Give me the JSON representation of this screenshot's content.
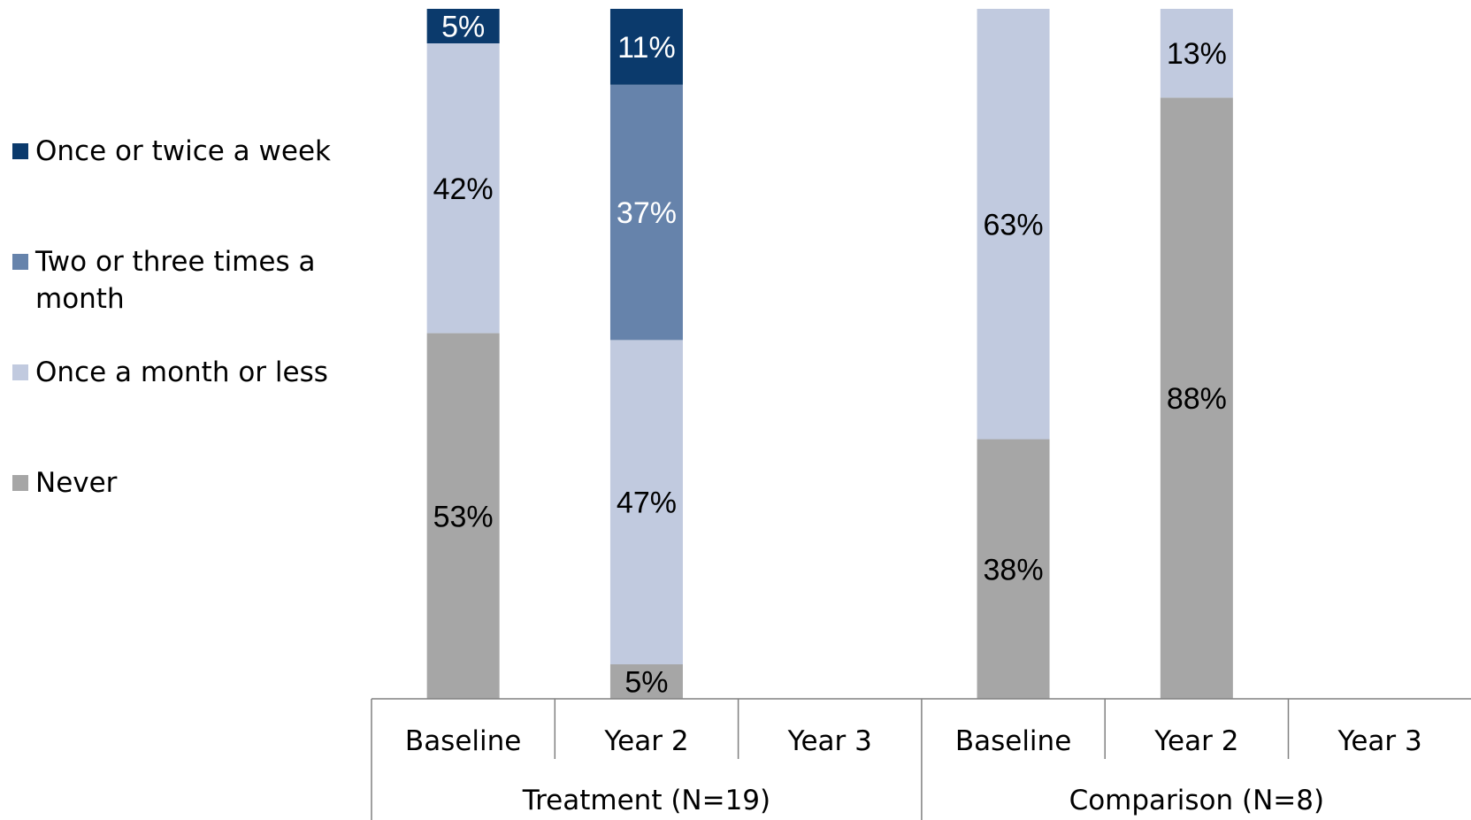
{
  "chart_data": {
    "type": "bar",
    "stacked": true,
    "normalized_percent": true,
    "groups": [
      {
        "label": "Treatment (N=19)",
        "categories": [
          "Baseline",
          "Year 2",
          "Year 3"
        ]
      },
      {
        "label": "Comparison (N=8)",
        "categories": [
          "Baseline",
          "Year 2",
          "Year 3"
        ]
      }
    ],
    "series": [
      {
        "name": "Never",
        "color": "#a6a6a6",
        "label_color": "#000000",
        "values": [
          53,
          5,
          null,
          38,
          88,
          null
        ],
        "labels": [
          "53%",
          "5%",
          "",
          "38%",
          "88%",
          ""
        ]
      },
      {
        "name": "Once a month or less",
        "color": "#c1cadf",
        "label_color": "#000000",
        "values": [
          42,
          47,
          null,
          63,
          13,
          null
        ],
        "labels": [
          "42%",
          "47%",
          "",
          "63%",
          "13%",
          ""
        ]
      },
      {
        "name": "Two or three times a month",
        "color": "#6683ab",
        "label_color": "#ffffff",
        "values": [
          null,
          37,
          null,
          null,
          null,
          null
        ],
        "labels": [
          "",
          "37%",
          "",
          "",
          "",
          ""
        ]
      },
      {
        "name": "Once or twice a week",
        "color": "#0b3a6c",
        "label_color": "#ffffff",
        "values": [
          5,
          11,
          null,
          null,
          null,
          null
        ],
        "labels": [
          "5%",
          "11%",
          "",
          "",
          "",
          ""
        ]
      }
    ],
    "legend": {
      "position": "left",
      "order": [
        "Once or twice a week",
        "Two or three times a month",
        "Once a month or less",
        "Never"
      ]
    },
    "ylim": [
      0,
      100
    ],
    "grid": false
  }
}
